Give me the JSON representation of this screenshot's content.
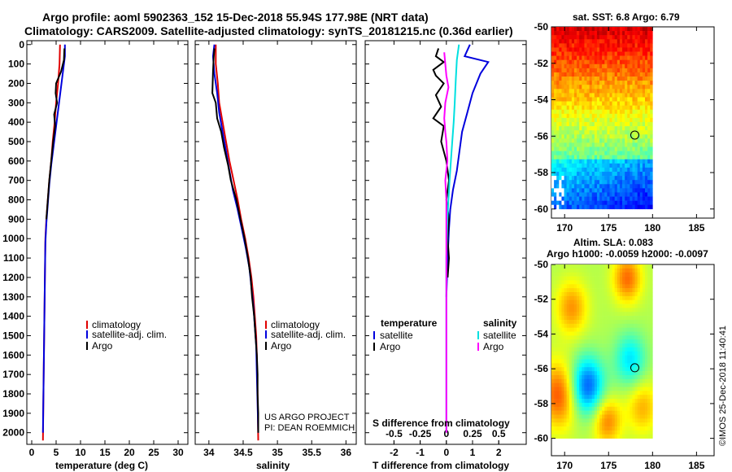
{
  "title": {
    "line1": "Argo profile: aoml 5902363_152 15-Dec-2018 55.94S 177.98E (NRT data)",
    "line2": "Climatology: CARS2009. Satellite-adjusted climatology: synTS_20181215.nc (0.36d earlier)"
  },
  "colors": {
    "climatology": "#e00000",
    "satellite": "#0000dd",
    "argo": "#000000",
    "sal_satellite": "#00e0e0",
    "sal_argo": "#ff00ff"
  },
  "depth_ticks": [
    "0",
    "100",
    "200",
    "300",
    "400",
    "500",
    "600",
    "700",
    "800",
    "900",
    "1000",
    "1100",
    "1200",
    "1300",
    "1400",
    "1500",
    "1600",
    "1700",
    "1800",
    "1900",
    "2000"
  ],
  "chart_data": [
    {
      "type": "line",
      "name": "temperature-profile",
      "xlabel": "temperature (deg C)",
      "ylabel": "pressure",
      "xlim": [
        -1,
        32
      ],
      "ylim": [
        2060,
        -20
      ],
      "xticks": [
        "0",
        "5",
        "10",
        "15",
        "20",
        "25",
        "30"
      ],
      "xtick_values": [
        0,
        5,
        10,
        15,
        20,
        25,
        30
      ],
      "legend": [
        "climatology",
        "satellite-adj. clim.",
        "Argo"
      ],
      "series": [
        {
          "name": "climatology",
          "color_key": "climatology",
          "points": [
            [
              5.8,
              0
            ],
            [
              5.7,
              100
            ],
            [
              5.4,
              200
            ],
            [
              5.0,
              300
            ],
            [
              4.7,
              400
            ],
            [
              4.3,
              500
            ],
            [
              4.0,
              600
            ],
            [
              3.6,
              700
            ],
            [
              3.3,
              800
            ],
            [
              3.0,
              900
            ],
            [
              2.8,
              1000
            ],
            [
              2.7,
              1200
            ],
            [
              2.6,
              1400
            ],
            [
              2.5,
              1600
            ],
            [
              2.4,
              1800
            ],
            [
              2.3,
              2040
            ]
          ]
        },
        {
          "name": "satellite",
          "color_key": "satellite",
          "points": [
            [
              6.8,
              0
            ],
            [
              6.8,
              60
            ],
            [
              6.5,
              120
            ],
            [
              6.0,
              220
            ],
            [
              5.5,
              320
            ],
            [
              5.0,
              420
            ],
            [
              4.5,
              520
            ],
            [
              4.0,
              620
            ],
            [
              3.6,
              720
            ],
            [
              3.3,
              820
            ],
            [
              3.0,
              920
            ],
            [
              2.8,
              1020
            ],
            [
              2.7,
              1200
            ],
            [
              2.6,
              1400
            ],
            [
              2.5,
              1600
            ],
            [
              2.4,
              1800
            ],
            [
              2.3,
              2000
            ]
          ]
        },
        {
          "name": "Argo",
          "color_key": "argo",
          "points": [
            [
              6.7,
              20
            ],
            [
              6.6,
              80
            ],
            [
              6.0,
              140
            ],
            [
              5.0,
              200
            ],
            [
              4.9,
              250
            ],
            [
              5.2,
              300
            ],
            [
              4.6,
              360
            ],
            [
              4.8,
              420
            ],
            [
              4.4,
              500
            ],
            [
              4.0,
              600
            ],
            [
              3.6,
              700
            ],
            [
              3.3,
              800
            ],
            [
              3.0,
              900
            ]
          ]
        }
      ]
    },
    {
      "type": "line",
      "name": "salinity-profile",
      "xlabel": "salinity",
      "ylabel": "pressure",
      "xlim": [
        33.8,
        36.15
      ],
      "ylim": [
        2060,
        -20
      ],
      "xticks": [
        "34",
        "34.5",
        "35",
        "35.5",
        "36"
      ],
      "xtick_values": [
        34,
        34.5,
        35,
        35.5,
        36
      ],
      "legend": [
        "climatology",
        "satellite-adj. clim.",
        "Argo"
      ],
      "annotation": [
        "US ARGO PROJECT",
        "PI: DEAN ROEMMICH"
      ],
      "series": [
        {
          "name": "climatology",
          "color_key": "climatology",
          "points": [
            [
              34.1,
              0
            ],
            [
              34.1,
              100
            ],
            [
              34.13,
              200
            ],
            [
              34.15,
              300
            ],
            [
              34.2,
              400
            ],
            [
              34.25,
              500
            ],
            [
              34.3,
              600
            ],
            [
              34.36,
              700
            ],
            [
              34.42,
              800
            ],
            [
              34.47,
              900
            ],
            [
              34.53,
              1000
            ],
            [
              34.58,
              1100
            ],
            [
              34.62,
              1200
            ],
            [
              34.65,
              1300
            ],
            [
              34.67,
              1400
            ],
            [
              34.69,
              1500
            ],
            [
              34.7,
              1600
            ],
            [
              34.71,
              1800
            ],
            [
              34.72,
              2040
            ]
          ]
        },
        {
          "name": "satellite",
          "color_key": "satellite",
          "points": [
            [
              34.08,
              0
            ],
            [
              34.06,
              60
            ],
            [
              34.08,
              150
            ],
            [
              34.12,
              250
            ],
            [
              34.15,
              350
            ],
            [
              34.2,
              450
            ],
            [
              34.25,
              550
            ],
            [
              34.3,
              650
            ],
            [
              34.35,
              750
            ],
            [
              34.42,
              850
            ],
            [
              34.48,
              950
            ],
            [
              34.54,
              1050
            ],
            [
              34.59,
              1150
            ],
            [
              34.62,
              1250
            ],
            [
              34.65,
              1350
            ],
            [
              34.67,
              1450
            ],
            [
              34.69,
              1550
            ],
            [
              34.7,
              1700
            ],
            [
              34.71,
              1850
            ],
            [
              34.72,
              2000
            ]
          ]
        },
        {
          "name": "Argo",
          "color_key": "argo",
          "points": [
            [
              34.08,
              20
            ],
            [
              34.07,
              70
            ],
            [
              34.06,
              140
            ],
            [
              34.05,
              250
            ],
            [
              34.1,
              300
            ],
            [
              34.12,
              380
            ],
            [
              34.18,
              450
            ],
            [
              34.22,
              530
            ],
            [
              34.28,
              620
            ],
            [
              34.32,
              700
            ],
            [
              34.4,
              800
            ],
            [
              34.46,
              900
            ],
            [
              34.52,
              1000
            ],
            [
              34.57,
              1100
            ],
            [
              34.61,
              1200
            ],
            [
              34.63,
              1300
            ],
            [
              34.66,
              1400
            ],
            [
              34.68,
              1500
            ],
            [
              34.7,
              1600
            ],
            [
              34.71,
              1700
            ],
            [
              34.71,
              1800
            ],
            [
              34.72,
              1900
            ],
            [
              34.72,
              2000
            ]
          ]
        }
      ]
    },
    {
      "type": "line",
      "name": "difference-profile",
      "xlabel": "T difference from climatology",
      "xlabel_top": "S difference from climatology",
      "xlim": [
        -3.1,
        3.05
      ],
      "ylim": [
        2060,
        -20
      ],
      "xticks": [
        "-2",
        "-1",
        "0",
        "1",
        "2"
      ],
      "xtick_values": [
        -2,
        -1,
        0,
        1,
        2
      ],
      "sticks": [
        "-0.5",
        "-0.25",
        "0",
        "0.25",
        "0.5"
      ],
      "stick_values": [
        -0.5,
        -0.25,
        0,
        0.25,
        0.5
      ],
      "s_scale": 4,
      "legend_temperature_title": "temperature",
      "legend_salinity_title": "salinity",
      "legend_labels": [
        "satellite",
        "Argo"
      ],
      "series": [
        {
          "name": "T satellite",
          "color_key": "satellite",
          "kind": "T",
          "points": [
            [
              0.9,
              0
            ],
            [
              0.7,
              60
            ],
            [
              1.6,
              90
            ],
            [
              1.3,
              150
            ],
            [
              1.0,
              250
            ],
            [
              0.8,
              350
            ],
            [
              0.6,
              450
            ],
            [
              0.5,
              550
            ],
            [
              0.4,
              650
            ],
            [
              0.25,
              750
            ],
            [
              0.15,
              850
            ],
            [
              0.1,
              950
            ],
            [
              0.05,
              1100
            ],
            [
              0.0,
              1300
            ]
          ]
        },
        {
          "name": "T Argo",
          "color_key": "argo",
          "kind": "T",
          "points": [
            [
              -0.3,
              20
            ],
            [
              -0.4,
              60
            ],
            [
              -0.1,
              90
            ],
            [
              -0.5,
              130
            ],
            [
              -0.4,
              160
            ],
            [
              -0.1,
              200
            ],
            [
              -0.4,
              260
            ],
            [
              -0.2,
              320
            ],
            [
              -0.5,
              380
            ],
            [
              -0.1,
              420
            ],
            [
              -0.2,
              500
            ],
            [
              0.0,
              600
            ],
            [
              0.1,
              700
            ],
            [
              0.0,
              800
            ],
            [
              0.1,
              900
            ],
            [
              0.05,
              1000
            ],
            [
              0.1,
              1100
            ],
            [
              0.05,
              1200
            ]
          ]
        },
        {
          "name": "S satellite",
          "color_key": "sal_satellite",
          "kind": "S",
          "points": [
            [
              0.12,
              0
            ],
            [
              0.1,
              80
            ],
            [
              0.09,
              180
            ],
            [
              0.08,
              300
            ],
            [
              0.07,
              400
            ],
            [
              0.05,
              550
            ],
            [
              0.03,
              700
            ],
            [
              0.01,
              900
            ],
            [
              0.0,
              1100
            ],
            [
              0.0,
              1300
            ],
            [
              0.0,
              1600
            ],
            [
              0.0,
              2000
            ]
          ]
        },
        {
          "name": "S Argo",
          "color_key": "sal_argo",
          "kind": "S",
          "points": [
            [
              -0.02,
              40
            ],
            [
              -0.01,
              100
            ],
            [
              0.0,
              160
            ],
            [
              0.02,
              220
            ],
            [
              -0.01,
              300
            ],
            [
              -0.02,
              380
            ],
            [
              -0.01,
              450
            ],
            [
              0.0,
              500
            ],
            [
              0.01,
              600
            ],
            [
              -0.01,
              700
            ],
            [
              0.0,
              800
            ],
            [
              0.0,
              1000
            ],
            [
              0.0,
              1200
            ],
            [
              0.0,
              1500
            ],
            [
              0.0,
              1800
            ],
            [
              0.0,
              2000
            ]
          ]
        }
      ]
    },
    {
      "type": "heatmap",
      "name": "sst-map",
      "title": "sat. SST: 6.8 Argo: 6.79",
      "xlim": [
        168.5,
        187
      ],
      "ylim": [
        -60.5,
        -50
      ],
      "xticks": [
        "170",
        "175",
        "180",
        "185"
      ],
      "xtick_values": [
        170,
        175,
        180,
        185
      ],
      "yticks": [
        "-50",
        "-52",
        "-54",
        "-56",
        "-58",
        "-60"
      ],
      "ytick_values": [
        -50,
        -52,
        -54,
        -56,
        -58,
        -60
      ],
      "data_extent": {
        "lon": [
          168.5,
          180
        ],
        "lat": [
          -60,
          -50
        ]
      },
      "marker": {
        "lon": 177.98,
        "lat": -55.94
      }
    },
    {
      "type": "heatmap",
      "name": "sla-map",
      "title_line1": "Altim. SLA: 0.083",
      "title_line2": "Argo h1000: -0.0059 h2000: -0.0097",
      "xlim": [
        168.5,
        187
      ],
      "ylim": [
        -61,
        -50
      ],
      "xticks": [
        "170",
        "175",
        "180",
        "185"
      ],
      "xtick_values": [
        170,
        175,
        180,
        185
      ],
      "yticks": [
        "-50",
        "-52",
        "-54",
        "-56",
        "-58",
        "-60"
      ],
      "ytick_values": [
        -50,
        -52,
        -54,
        -56,
        -58,
        -60
      ],
      "data_extent": {
        "lon": [
          168.5,
          180
        ],
        "lat": [
          -60,
          -50
        ]
      },
      "marker": {
        "lon": 177.98,
        "lat": -55.94
      }
    }
  ],
  "credit": "©IMOS 25-Dec-2018 11:40:41"
}
